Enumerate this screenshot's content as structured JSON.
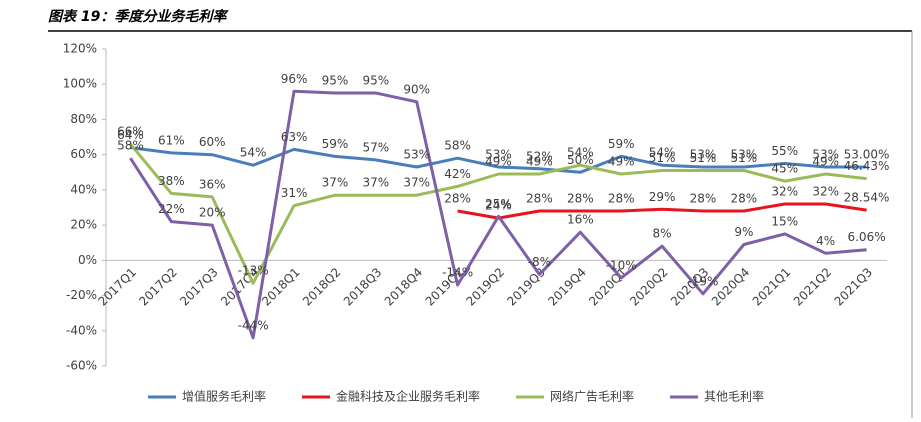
{
  "chart_data": {
    "type": "line",
    "title": "图表 19：季度分业务毛利率",
    "categories": [
      "2017Q1",
      "2017Q2",
      "2017Q3",
      "2017Q4",
      "2018Q1",
      "2018Q2",
      "2018Q3",
      "2018Q4",
      "2019Q1",
      "2019Q2",
      "2019Q3",
      "2019Q4",
      "2020Q1",
      "2020Q2",
      "2020Q3",
      "2020Q4",
      "2021Q1",
      "2021Q2",
      "2021Q3"
    ],
    "series": [
      {
        "name": "增值服务毛利率",
        "color": "#4a7ebb",
        "values": [
          64,
          61,
          60,
          54,
          63,
          59,
          57,
          53,
          58,
          53,
          52,
          50,
          59,
          54,
          53,
          53,
          55,
          53,
          53.0
        ],
        "value_labels": [
          "64%",
          "61%",
          "60%",
          "54%",
          "63%",
          "59%",
          "57%",
          "53%",
          "58%",
          "53%",
          "52%",
          "50%",
          "59%",
          "54%",
          "53%",
          "53%",
          "55%",
          "53%",
          "53.00%"
        ]
      },
      {
        "name": "金融科技及企业服务毛利率",
        "color": "#e8141b",
        "values": [
          null,
          null,
          null,
          null,
          null,
          null,
          null,
          null,
          28,
          24,
          28,
          28,
          28,
          29,
          28,
          28,
          32,
          32,
          28.54
        ],
        "value_labels": [
          null,
          null,
          null,
          null,
          null,
          null,
          null,
          null,
          "28%",
          "24%",
          "28%",
          "28%",
          "28%",
          "29%",
          "28%",
          "28%",
          "32%",
          "32%",
          "28.54%"
        ]
      },
      {
        "name": "网络广告毛利率",
        "color": "#9bbb59",
        "values": [
          66,
          38,
          36,
          -13,
          31,
          37,
          37,
          37,
          42,
          49,
          49,
          54,
          49,
          51,
          51,
          51,
          45,
          49,
          46.43
        ],
        "value_labels": [
          "66%",
          "38%",
          "36%",
          "-13%",
          "31%",
          "37%",
          "37%",
          "37%",
          "42%",
          "49%",
          "49%",
          "54%",
          "49%",
          "51%",
          "51%",
          "51%",
          "45%",
          "49%",
          "46.43%"
        ]
      },
      {
        "name": "其他毛利率",
        "color": "#7f5fa8",
        "values": [
          58,
          22,
          20,
          -44,
          96,
          95,
          95,
          90,
          -14,
          25,
          -8,
          16,
          -10,
          8,
          -19,
          9,
          15,
          4,
          6.06
        ],
        "value_labels": [
          "58%",
          "22%",
          "20%",
          "-44%",
          "96%",
          "95%",
          "95%",
          "90%",
          "-14%",
          "25%",
          "-8%",
          "16%",
          "-10%",
          "8%",
          "-19%",
          "9%",
          "15%",
          "4%",
          "6.06%"
        ]
      }
    ],
    "ylim": [
      -60,
      120
    ],
    "yticks": [
      {
        "value": -60,
        "label": "-60%"
      },
      {
        "value": -40,
        "label": "-40%"
      },
      {
        "value": -20,
        "label": "-20%"
      },
      {
        "value": 0,
        "label": "0%"
      },
      {
        "value": 20,
        "label": "20%"
      },
      {
        "value": 40,
        "label": "40%"
      },
      {
        "value": 60,
        "label": "60%"
      },
      {
        "value": 80,
        "label": "80%"
      },
      {
        "value": 100,
        "label": "100%"
      },
      {
        "value": 120,
        "label": "120%"
      }
    ],
    "legend": "bottom"
  }
}
